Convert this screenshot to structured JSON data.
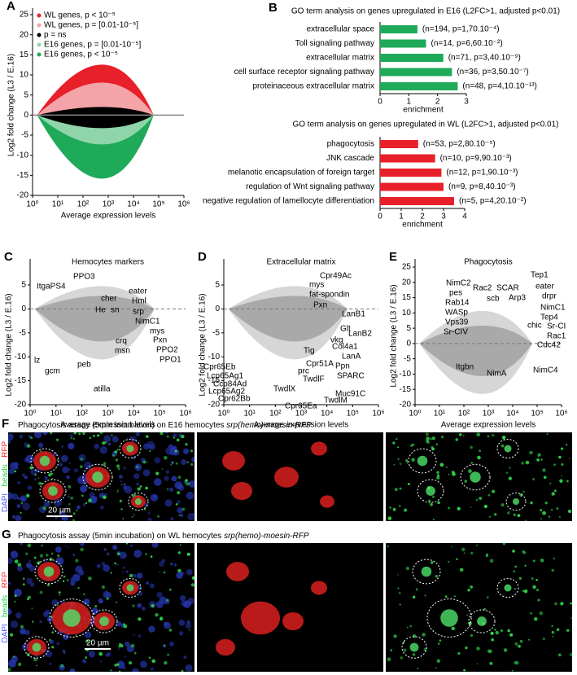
{
  "chart_data": [
    {
      "panel": "A",
      "type": "scatter",
      "ylabel": "Log2 fold change (L3 / E.16)",
      "xlabel": "Average expression levels",
      "xscale": "log",
      "xlim": [
        1,
        1000000
      ],
      "xticks": [
        {
          "value": 1,
          "label": "10⁰"
        },
        {
          "value": 10,
          "label": "10¹"
        },
        {
          "value": 100,
          "label": "10²"
        },
        {
          "value": 1000,
          "label": "10³"
        },
        {
          "value": 10000,
          "label": "10⁴"
        },
        {
          "value": 100000,
          "label": "10⁵"
        },
        {
          "value": 1000000,
          "label": "10⁶"
        }
      ],
      "ylim": [
        -20,
        25
      ],
      "yticks": [
        -20,
        -15,
        -10,
        -5,
        0,
        5,
        10,
        15,
        20,
        25
      ],
      "legend": [
        {
          "name": "WL genes, p < 10⁻⁵",
          "color": "#e8202a"
        },
        {
          "name": "WL genes, p = [0.01-10⁻⁵]",
          "color": "#f4a3a8"
        },
        {
          "name": "p = ns",
          "color": "#000000"
        },
        {
          "name": "E16 genes, p = [0.01-10⁻⁵]",
          "color": "#8fd5a9"
        },
        {
          "name": "E16 genes, p < 10⁻⁵",
          "color": "#1faa5a"
        }
      ]
    },
    {
      "panel": "B",
      "type": "barh",
      "title": "GO term analysis on genes upregulated in E16 (L2FC>1, adjusted p<0.01)",
      "categories": [
        "extracellular space",
        "Toll signaling pathway",
        "extracellular matrix",
        "cell surface receptor signaling pathway",
        "proteinaceous extracellular matrix"
      ],
      "values": [
        1.3,
        1.6,
        2.2,
        2.5,
        2.7
      ],
      "annotations": [
        "(n=194, p=1,70.10⁻⁴)",
        "(n=14, p=6,60.10⁻²)",
        "(n=71, p=3,40.10⁻⁹)",
        "(n=36, p=3,50.10⁻⁷)",
        "(n=48, p=4,10.10⁻¹³)"
      ],
      "color": "#1faa5a",
      "xlabel": "enrichment",
      "xlim": [
        0,
        3
      ],
      "xticks": [
        0,
        1,
        2,
        3
      ]
    },
    {
      "type": "barh",
      "title": "GO term analysis on genes upregulated in WL (L2FC>1, adjusted p<0.01)",
      "categories": [
        "phagocytosis",
        "JNK cascade",
        "melanotic encapsulation of foreign target",
        "regulation of Wnt signaling pathway",
        "negative regulation of lamellocyte differentiation"
      ],
      "values": [
        1.8,
        2.6,
        2.9,
        3.0,
        3.5
      ],
      "annotations": [
        "(n=53, p=2,80.10⁻⁵)",
        "(n=10, p=9,90.10⁻³)",
        "(n=12, p=1,90.10⁻³)",
        "(n=9, p=8,40.10⁻³)",
        "(n=5, p=4,20.10⁻²)"
      ],
      "color": "#e8202a",
      "xlabel": "enrichment",
      "xlim": [
        0,
        4
      ],
      "xticks": [
        0,
        1,
        2,
        3,
        4
      ]
    },
    {
      "panel": "C",
      "type": "scatter",
      "title": "Hemocytes markers",
      "ylabel": "Log2 fold change (L3 / E.16)",
      "xlabel": "Average expression levels",
      "xscale": "log",
      "xlim": [
        1,
        1000000
      ],
      "xticks": [
        {
          "value": 1,
          "label": "10⁰"
        },
        {
          "value": 10,
          "label": "10¹"
        },
        {
          "value": 100,
          "label": "10²"
        },
        {
          "value": 1000,
          "label": "10³"
        },
        {
          "value": 10000,
          "label": "10⁴"
        },
        {
          "value": 100000,
          "label": "10⁵"
        },
        {
          "value": 1000000,
          "label": "10⁶"
        }
      ],
      "ylim": [
        -20,
        5
      ],
      "yticks": [
        -20,
        -15,
        -10,
        -5,
        0,
        5
      ],
      "annotations": [
        "ItgaPS4",
        "PPO3",
        "cher",
        "eater",
        "Hml",
        "He",
        "sn",
        "srp",
        "NimC1",
        "mys",
        "Pxn",
        "crq",
        "PPO2",
        "msn",
        "PPO1",
        "lz",
        "gcm",
        "peb",
        "atilla"
      ]
    },
    {
      "panel": "D",
      "type": "scatter",
      "title": "Extracellular matrix",
      "ylabel": "Log2 fold change (L3 / E.16)",
      "xlabel": "Average expression levels",
      "xscale": "log",
      "xlim": [
        1,
        1000000
      ],
      "xticks": [
        {
          "value": 1,
          "label": "10⁰"
        },
        {
          "value": 10,
          "label": "10¹"
        },
        {
          "value": 100,
          "label": "10²"
        },
        {
          "value": 1000,
          "label": "10³"
        },
        {
          "value": 10000,
          "label": "10⁴"
        },
        {
          "value": 100000,
          "label": "10⁵"
        },
        {
          "value": 1000000,
          "label": "10⁶"
        }
      ],
      "ylim": [
        -20,
        5
      ],
      "yticks": [
        -20,
        -15,
        -10,
        -5,
        0,
        5
      ],
      "annotations": [
        "Cpr49Ac",
        "mys",
        "fat-spondin",
        "Pxn",
        "LanB1",
        "Glt",
        "LanB2",
        "vkg",
        "Tig",
        "Col4a1",
        "LanA",
        "Ppn",
        "SPARC",
        "Cpr51A",
        "prc",
        "TwdlF",
        "Muc91C",
        "TwdlX",
        "TwdlM",
        "Cpr65Ea",
        "Cpr65Eb",
        "Lcp65Ag1",
        "Ccp84Ad",
        "Lcp65Ag2",
        "Cpr62Bb"
      ]
    },
    {
      "panel": "E",
      "type": "scatter",
      "title": "Phagocytosis",
      "ylabel": "Log2 fold change (L3 / E.16)",
      "xlabel": "Average expression levels",
      "xscale": "log",
      "xlim": [
        1,
        1000000
      ],
      "xticks": [
        {
          "value": 1,
          "label": "10⁰"
        },
        {
          "value": 10,
          "label": "10¹"
        },
        {
          "value": 100,
          "label": "10²"
        },
        {
          "value": 1000,
          "label": "10³"
        },
        {
          "value": 10000,
          "label": "10⁴"
        },
        {
          "value": 100000,
          "label": "10⁵"
        },
        {
          "value": 1000000,
          "label": "10⁶"
        }
      ],
      "ylim": [
        -20,
        25
      ],
      "yticks": [
        -20,
        -15,
        -10,
        -5,
        0,
        5,
        10,
        15,
        20,
        25
      ],
      "annotations": [
        "Tep1",
        "NimC2",
        "eater",
        "pes",
        "Rac2",
        "SCAR",
        "drpr",
        "Rab14",
        "scb",
        "Arp3",
        "NimC1",
        "WASp",
        "Tep4",
        "Vps39",
        "chic",
        "Sr-CI",
        "Sr-CIV",
        "Rac1",
        "Cdc42",
        "Itgbn",
        "NimA",
        "NimC4"
      ]
    }
  ],
  "micrographs": [
    {
      "panel": "F",
      "title": "Phagocytosis assay (5min incubation) on E16 hemocytes ",
      "genotype": "srp(hemo)-moesin-RFP",
      "scale_bar": "20 µm"
    },
    {
      "panel": "G",
      "title": "Phagocytosis assay (5min incubation) on WL hemocytes ",
      "genotype": "srp(hemo)-moesin-RFP",
      "scale_bar": "20 µm"
    }
  ],
  "channels": [
    {
      "name": "DAPI",
      "color": "#4a5cff"
    },
    {
      "name": "beads",
      "color": "#2fd04f"
    },
    {
      "name": "RFP",
      "color": "#ff2a2a"
    }
  ],
  "channel_separator": " / "
}
